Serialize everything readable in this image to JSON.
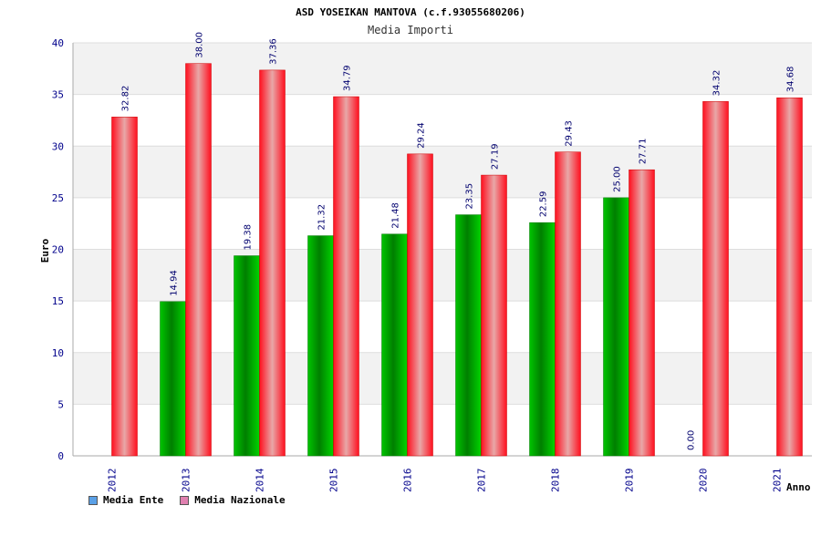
{
  "chart_data": {
    "type": "bar",
    "title": "ASD YOSEIKAN MANTOVA (c.f.93055680206)",
    "subtitle": "Media Importi",
    "xlabel": "Anno",
    "ylabel": "Euro",
    "ylim": [
      0,
      40
    ],
    "yticks": [
      0,
      5,
      10,
      15,
      20,
      25,
      30,
      35,
      40
    ],
    "grid": true,
    "legend_position": "bottom-left",
    "categories": [
      "2012",
      "2013",
      "2014",
      "2015",
      "2016",
      "2017",
      "2018",
      "2019",
      "2020",
      "2021"
    ],
    "series": [
      {
        "name": "Media Ente",
        "color": "#00aa00",
        "swatch_color": "#5aa0e6",
        "values": [
          null,
          14.94,
          19.38,
          21.32,
          21.48,
          23.35,
          22.59,
          25.0,
          0.0,
          null
        ],
        "labels": [
          "",
          "14.94",
          "19.38",
          "21.32",
          "21.48",
          "23.35",
          "22.59",
          "25.00",
          "0.00",
          ""
        ]
      },
      {
        "name": "Media Nazionale",
        "color": "#ee1122",
        "swatch_color": "#e080b0",
        "values": [
          32.82,
          38.0,
          37.36,
          34.79,
          29.24,
          27.19,
          29.43,
          27.71,
          34.32,
          34.68
        ],
        "labels": [
          "32.82",
          "38.00",
          "37.36",
          "34.79",
          "29.24",
          "27.19",
          "29.43",
          "27.71",
          "34.32",
          "34.68"
        ]
      }
    ]
  }
}
